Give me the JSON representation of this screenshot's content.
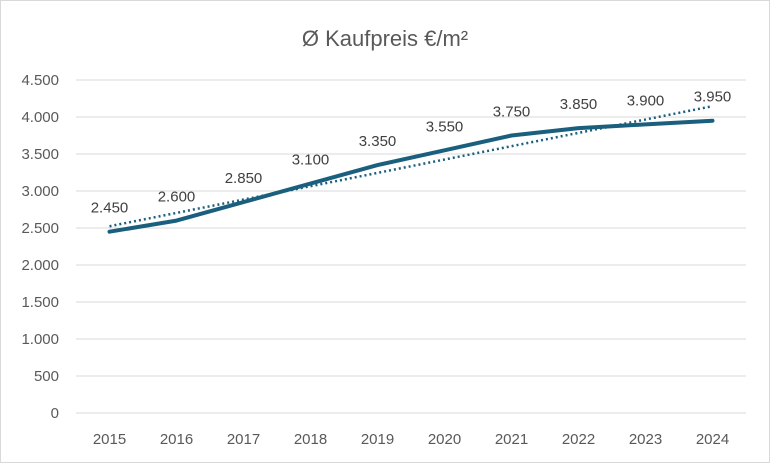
{
  "chart_data": {
    "type": "line",
    "title": "Ø Kaufpreis €/m²",
    "categories": [
      "2015",
      "2016",
      "2017",
      "2018",
      "2019",
      "2020",
      "2021",
      "2022",
      "2023",
      "2024"
    ],
    "series": [
      {
        "values": [
          2450,
          2600,
          2850,
          3100,
          3350,
          3550,
          3750,
          3850,
          3900,
          3950
        ],
        "data_labels": [
          "2.450",
          "2.600",
          "2.850",
          "3.100",
          "3.350",
          "3.550",
          "3.750",
          "3.850",
          "3.900",
          "3.950"
        ],
        "color": "#1b5f7e",
        "line_style": "solid"
      }
    ],
    "trendline": {
      "type": "linear",
      "style": "dotted",
      "color": "#1b5f7e"
    },
    "ylim": [
      0,
      4500
    ],
    "yticks": [
      0,
      500,
      1000,
      1500,
      2000,
      2500,
      3000,
      3500,
      4000,
      4500
    ],
    "ytick_labels": [
      "0",
      "500",
      "1.000",
      "1.500",
      "2.000",
      "2.500",
      "3.000",
      "3.500",
      "4.000",
      "4.500"
    ],
    "grid": true,
    "legend": "none",
    "xlabel": "",
    "ylabel": ""
  }
}
